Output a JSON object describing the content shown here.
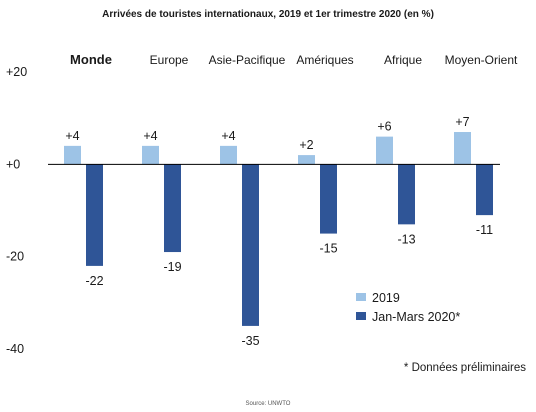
{
  "chart_data": {
    "type": "bar",
    "title": "Arrivées de touristes internationaux, 2019 et 1er trimestre 2020 (en %)",
    "categories": [
      "Monde",
      "Europe",
      "Asie-Pacifique",
      "Amériques",
      "Afrique",
      "Moyen-Orient"
    ],
    "series": [
      {
        "name": "2019",
        "color": "#9dc3e6",
        "values": [
          4,
          4,
          4,
          2,
          6,
          7
        ],
        "labels": [
          "+4",
          "+4",
          "+4",
          "+2",
          "+6",
          "+7"
        ]
      },
      {
        "name": "Jan-Mars 2020*",
        "color": "#2f5597",
        "values": [
          -22,
          -19,
          -35,
          -15,
          -13,
          -11
        ],
        "labels": [
          "-22",
          "-19",
          "-35",
          "-15",
          "-13",
          "-11"
        ]
      }
    ],
    "yticks": [
      20,
      0,
      -20,
      -40
    ],
    "ytick_labels": [
      "+20",
      "+0",
      "-20",
      "-40"
    ],
    "ylim": [
      -40,
      20
    ],
    "grid": false,
    "legend_position": "bottom-right",
    "note": "* Données préliminaires",
    "source": "Source: UNWTO"
  }
}
